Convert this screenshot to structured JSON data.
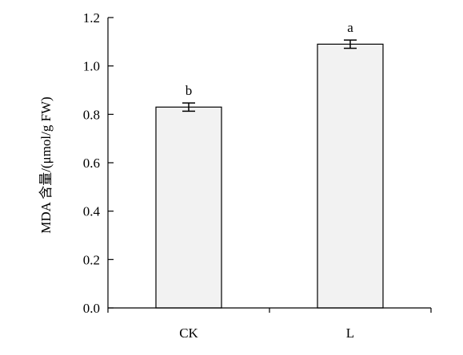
{
  "chart_data": {
    "type": "bar",
    "title": "",
    "xlabel": "",
    "ylabel": "MDA 含量/(μmol/g FW)",
    "ylim": [
      0,
      1.2
    ],
    "yticks": [
      "0.0",
      "0.2",
      "0.4",
      "0.6",
      "0.8",
      "1.0",
      "1.2"
    ],
    "categories": [
      "CK",
      "L"
    ],
    "values": [
      0.83,
      1.09
    ],
    "errors": [
      0.017,
      0.017
    ],
    "significance": [
      "b",
      "a"
    ],
    "grid": false,
    "bar_color": "#f2f2f2"
  }
}
